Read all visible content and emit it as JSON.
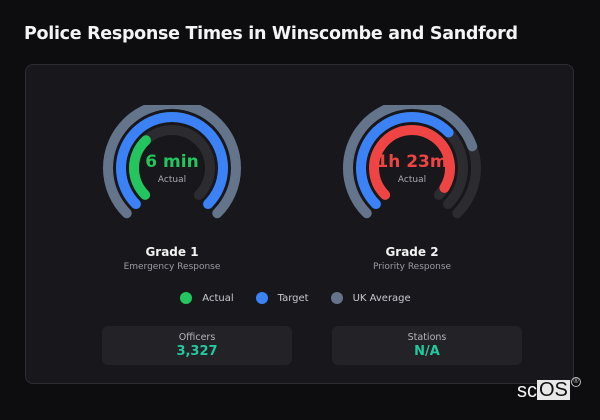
{
  "title": "Police Response Times in Winscombe and Sandford",
  "chart_data": {
    "type": "radial-bar",
    "title": "Police Response Times in Winscombe and Sandford",
    "legend": [
      {
        "label": "Actual",
        "color": "#22c55e"
      },
      {
        "label": "Target",
        "color": "#3b82f6"
      },
      {
        "label": "UK Average",
        "color": "#64748b"
      }
    ],
    "gauges": [
      {
        "grade": "Grade 1",
        "description": "Emergency Response",
        "actual_label": "6 min",
        "actual_sublabel": "Actual",
        "actual_color": "#22c55e",
        "series": [
          {
            "name": "Actual",
            "fraction": 0.34,
            "color": "#22c55e"
          },
          {
            "name": "Target",
            "fraction": 1.0,
            "color": "#3b82f6"
          },
          {
            "name": "UK Average",
            "fraction": 1.0,
            "color": "#64748b"
          }
        ]
      },
      {
        "grade": "Grade 2",
        "description": "Priority Response",
        "actual_label": "1h 23m",
        "actual_sublabel": "Actual",
        "actual_color": "#ef4444",
        "series": [
          {
            "name": "Actual",
            "fraction": 0.95,
            "color": "#ef4444"
          },
          {
            "name": "Target",
            "fraction": 0.67,
            "color": "#3b82f6"
          },
          {
            "name": "UK Average",
            "fraction": 0.76,
            "color": "#64748b"
          }
        ]
      }
    ],
    "arc_sweep_degrees": 270
  },
  "gauges": [
    {
      "value": "6 min",
      "sub": "Actual",
      "grade": "Grade 1",
      "desc": "Emergency Response"
    },
    {
      "value": "1h 23m",
      "sub": "Actual",
      "grade": "Grade 2",
      "desc": "Priority Response"
    }
  ],
  "legend": [
    {
      "label": "Actual",
      "color": "#22c55e"
    },
    {
      "label": "Target",
      "color": "#3b82f6"
    },
    {
      "label": "UK Average",
      "color": "#64748b"
    }
  ],
  "stats": [
    {
      "label": "Officers",
      "value": "3,327"
    },
    {
      "label": "Stations",
      "value": "N/A"
    }
  ],
  "brand": {
    "prefix": "sc",
    "highlight": "OS",
    "mark": "®"
  }
}
